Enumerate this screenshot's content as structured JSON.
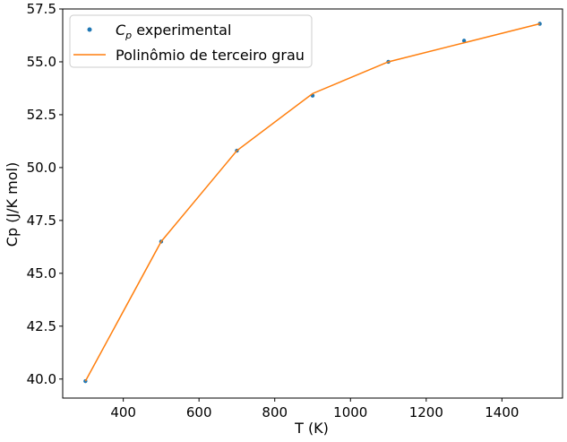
{
  "chart_data": {
    "type": "line",
    "title": "",
    "xlabel": "T (K)",
    "ylabel": "Cp (J/K mol)",
    "xlim": [
      240,
      1560
    ],
    "ylim": [
      39.1,
      57.5
    ],
    "xticks": [
      400,
      600,
      800,
      1000,
      1200,
      1400
    ],
    "xtick_labels": [
      "400",
      "600",
      "800",
      "1000",
      "1200",
      "1400"
    ],
    "yticks": [
      40.0,
      42.5,
      45.0,
      47.5,
      50.0,
      52.5,
      55.0,
      57.5
    ],
    "ytick_labels": [
      "40.0",
      "42.5",
      "45.0",
      "47.5",
      "50.0",
      "52.5",
      "55.0",
      "57.5"
    ],
    "grid": false,
    "legend_position": "top-left",
    "series": [
      {
        "name_prefix": "C",
        "name_subscript": "p",
        "name_suffix": " experimental",
        "kind": "scatter",
        "color": "#1f77b4",
        "x": [
          300,
          500,
          700,
          900,
          1100,
          1300,
          1500
        ],
        "y": [
          39.9,
          46.5,
          50.8,
          53.4,
          55.0,
          56.0,
          56.8
        ]
      },
      {
        "name": "Polinômio de terceiro grau",
        "kind": "line",
        "color": "#ff7f0e",
        "x": [
          300,
          500,
          700,
          900,
          1100,
          1300,
          1500
        ],
        "y": [
          39.9,
          46.5,
          50.8,
          53.5,
          55.0,
          55.9,
          56.8
        ]
      }
    ]
  }
}
